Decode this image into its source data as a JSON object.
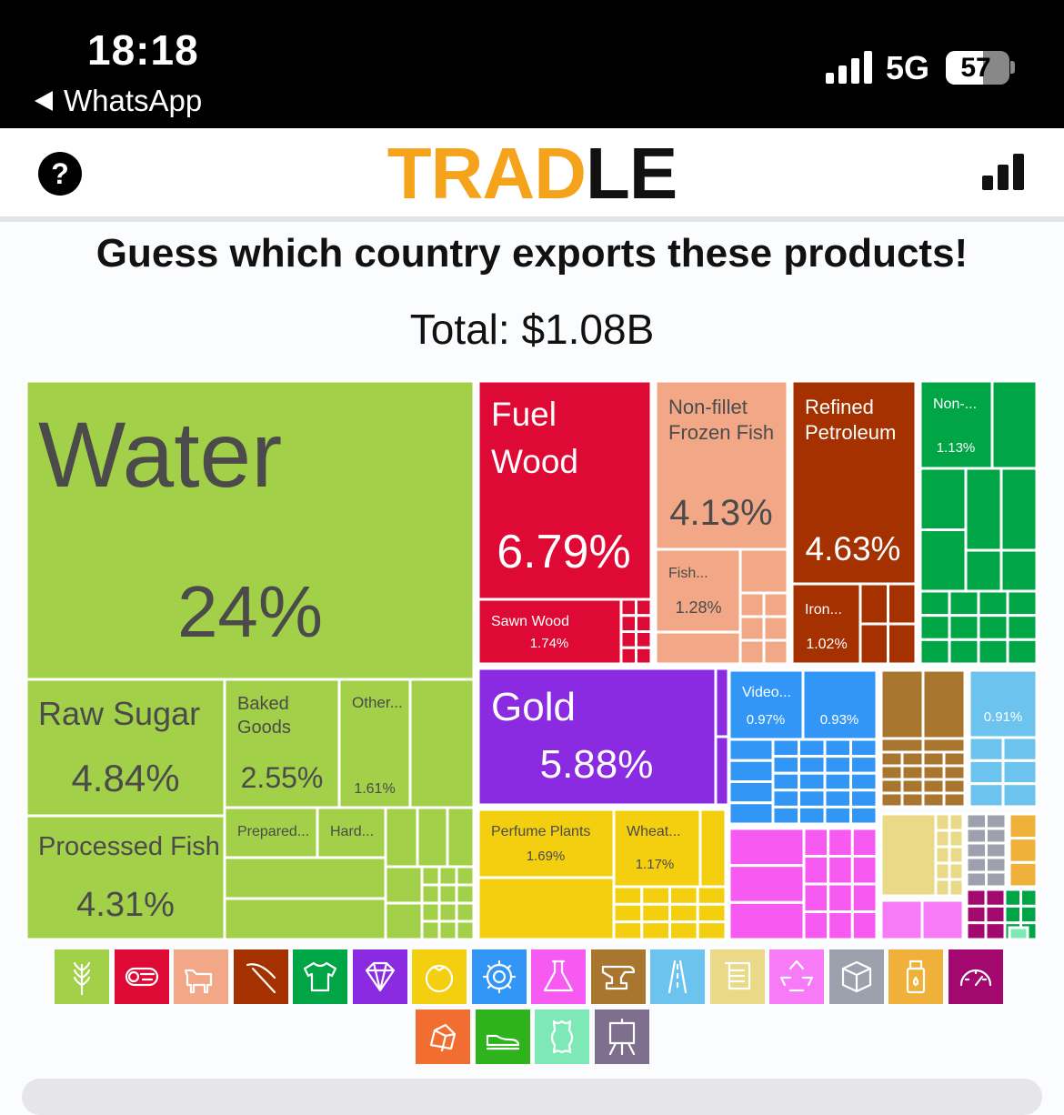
{
  "status_bar": {
    "time": "18:18",
    "back_app": "WhatsApp",
    "network": "5G",
    "battery": "57"
  },
  "header": {
    "logo_part1": "TRAD",
    "logo_part2": "LE",
    "help_icon": "question-icon",
    "stats_icon": "bar-chart-icon",
    "logo_colors": {
      "trad": "#f5a31a",
      "le": "#111111"
    }
  },
  "prompt": {
    "question": "Guess which country exports these products!",
    "total": "Total: $1.08B"
  },
  "chart_data": {
    "type": "treemap",
    "total": "$1.08B",
    "items": [
      {
        "id": "water",
        "category": "Vegetable Products",
        "label": "Water",
        "value": "24%",
        "color": "#a2d048"
      },
      {
        "id": "raw-sugar",
        "category": "Vegetable Products",
        "label": "Raw Sugar",
        "value": "4.84%",
        "color": "#a2d048"
      },
      {
        "id": "baked-goods",
        "category": "Vegetable Products",
        "label": "Baked Goods",
        "value": "2.55%",
        "color": "#a2d048"
      },
      {
        "id": "other-veg",
        "category": "Vegetable Products",
        "label": "Other...",
        "value": "1.61%",
        "color": "#a2d048"
      },
      {
        "id": "processed-fish",
        "category": "Vegetable Products",
        "label": "Processed Fish",
        "value": "4.31%",
        "color": "#a2d048"
      },
      {
        "id": "prepared",
        "category": "Vegetable Products",
        "label": "Prepared...",
        "value": "",
        "color": "#a2d048"
      },
      {
        "id": "hard",
        "category": "Vegetable Products",
        "label": "Hard...",
        "value": "",
        "color": "#a2d048"
      },
      {
        "id": "fuel-wood",
        "category": "Wood Products",
        "label": "Fuel Wood",
        "value": "6.79%",
        "color": "#de0a35"
      },
      {
        "id": "sawn-wood",
        "category": "Wood Products",
        "label": "Sawn Wood",
        "value": "1.74%",
        "color": "#de0a35"
      },
      {
        "id": "frozen-fish",
        "category": "Animal Products",
        "label": "Non-fillet Frozen Fish",
        "value": "4.13%",
        "color": "#f2a886"
      },
      {
        "id": "fish-small",
        "category": "Animal Products",
        "label": "Fish...",
        "value": "1.28%",
        "color": "#f2a886"
      },
      {
        "id": "refined-petroleum",
        "category": "Mineral Products",
        "label": "Refined Petroleum",
        "value": "4.63%",
        "color": "#a53000"
      },
      {
        "id": "iron",
        "category": "Mineral Products",
        "label": "Iron...",
        "value": "1.02%",
        "color": "#a53000"
      },
      {
        "id": "non-textile",
        "category": "Textiles",
        "label": "Non-...",
        "value": "1.13%",
        "color": "#00a645"
      },
      {
        "id": "gold",
        "category": "Precious Metals",
        "label": "Gold",
        "value": "5.88%",
        "color": "#8a2be2"
      },
      {
        "id": "perfume-plants",
        "category": "Foodstuffs",
        "label": "Perfume Plants",
        "value": "1.69%",
        "color": "#f4cf0f"
      },
      {
        "id": "wheat",
        "category": "Foodstuffs",
        "label": "Wheat...",
        "value": "1.17%",
        "color": "#f4cf0f"
      },
      {
        "id": "video",
        "category": "Machines",
        "label": "Video...",
        "value": "0.97%",
        "color": "#3296f7"
      },
      {
        "id": "machines-2",
        "category": "Machines",
        "label": "",
        "value": "0.93%",
        "color": "#3296f7"
      },
      {
        "id": "transport-1",
        "category": "Transportation",
        "label": "",
        "value": "0.91%",
        "color": "#6cc4ee"
      }
    ]
  },
  "legend_icons": [
    {
      "name": "wheat-icon",
      "color": "#a2d048"
    },
    {
      "name": "log-icon",
      "color": "#de0a35"
    },
    {
      "name": "cow-icon",
      "color": "#f2a886"
    },
    {
      "name": "pickaxe-icon",
      "color": "#a53000"
    },
    {
      "name": "shirt-icon",
      "color": "#00a645"
    },
    {
      "name": "diamond-icon",
      "color": "#8a2be2"
    },
    {
      "name": "tomato-icon",
      "color": "#f4cf0f"
    },
    {
      "name": "gear-icon",
      "color": "#3296f7"
    },
    {
      "name": "flask-icon",
      "color": "#f75af0"
    },
    {
      "name": "anvil-icon",
      "color": "#a8762e"
    },
    {
      "name": "road-icon",
      "color": "#6cc4ee"
    },
    {
      "name": "scroll-icon",
      "color": "#eada87"
    },
    {
      "name": "recycle-icon",
      "color": "#f77af7"
    },
    {
      "name": "box-icon",
      "color": "#9da0ad"
    },
    {
      "name": "bottle-icon",
      "color": "#efb13a"
    },
    {
      "name": "gauge-icon",
      "color": "#a3086f"
    },
    {
      "name": "stone-icon",
      "color": "#f26d30"
    },
    {
      "name": "shoe-icon",
      "color": "#2fb31d"
    },
    {
      "name": "hide-icon",
      "color": "#7ee9b6"
    },
    {
      "name": "easel-icon",
      "color": "#7f6f8e"
    }
  ]
}
